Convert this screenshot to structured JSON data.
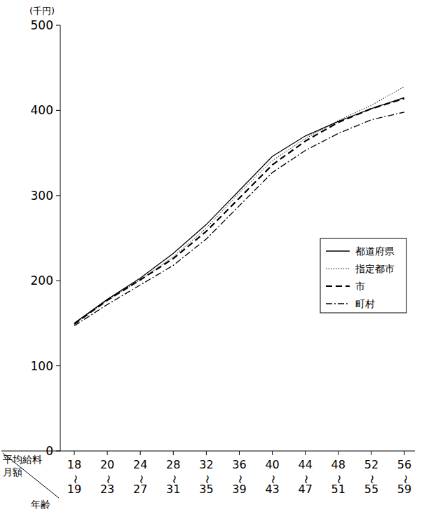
{
  "chart_data": {
    "type": "line",
    "y_unit": "(千円)",
    "y_label": "平均給料月額",
    "x_label": "年齢",
    "categories": [
      "18〜19",
      "20〜23",
      "24〜27",
      "28〜31",
      "32〜35",
      "36〜39",
      "40〜43",
      "44〜47",
      "48〜51",
      "52〜55",
      "56〜59"
    ],
    "ylim": [
      0,
      500
    ],
    "yticks": [
      0,
      100,
      200,
      300,
      400,
      500
    ],
    "grid": false,
    "legend": "lower right",
    "series": [
      {
        "name": "都道府県",
        "color": "#000000",
        "line_style": "solid",
        "values": [
          150,
          178,
          203,
          232,
          266,
          306,
          346,
          370,
          387,
          402,
          415
        ]
      },
      {
        "name": "指定都市",
        "color": "#000000",
        "line_style": "dotted",
        "values": [
          149,
          177,
          201,
          228,
          262,
          303,
          341,
          367,
          388,
          406,
          428
        ]
      },
      {
        "name": "市",
        "color": "#000000",
        "line_style": "dashed",
        "values": [
          149,
          177,
          201,
          226,
          258,
          297,
          336,
          364,
          386,
          402,
          414
        ]
      },
      {
        "name": "町村",
        "color": "#000000",
        "line_style": "dashdot",
        "values": [
          147,
          172,
          195,
          218,
          249,
          288,
          327,
          353,
          373,
          389,
          398
        ]
      }
    ]
  }
}
